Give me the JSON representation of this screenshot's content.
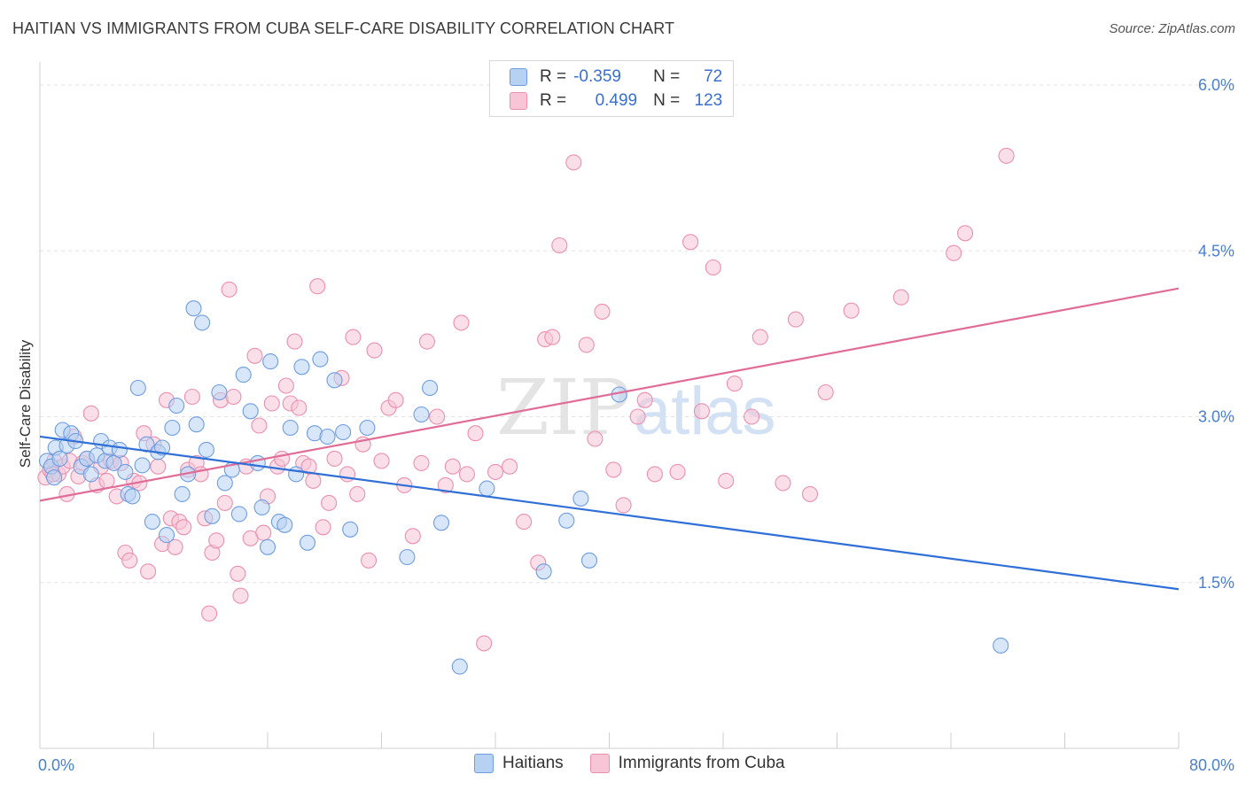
{
  "header": {
    "title": "HAITIAN VS IMMIGRANTS FROM CUBA SELF-CARE DISABILITY CORRELATION CHART",
    "source": "Source: ZipAtlas.com"
  },
  "legend": {
    "rows": [
      {
        "r_label": "R =",
        "r_value": "-0.359",
        "n_label": "N =",
        "n_value": "72"
      },
      {
        "r_label": "R =",
        "r_value": "0.499",
        "n_label": "N =",
        "n_value": "123"
      }
    ],
    "series_names": [
      "Haitians",
      "Immigrants from Cuba"
    ]
  },
  "watermark": {
    "zip": "ZIP",
    "atlas": "atlas"
  },
  "colors": {
    "haitian_fill": "#b7d1f3",
    "haitian_stroke": "#6f9de0",
    "haitian_line": "#2f6fd6",
    "cuba_fill": "#f7c5d5",
    "cuba_stroke": "#ea8fb0",
    "cuba_line": "#e06d97",
    "tick_label": "#4a7fd0",
    "grid": "#e3e3e3"
  },
  "chart_data": {
    "type": "scatter",
    "title": "HAITIAN VS IMMIGRANTS FROM CUBA SELF-CARE DISABILITY CORRELATION CHART",
    "xlabel": "",
    "ylabel": "Self-Care Disability",
    "xlim": [
      0,
      80
    ],
    "ylim": [
      0,
      6.3
    ],
    "x_tick_labels": [
      "0.0%",
      "80.0%"
    ],
    "y_ticks": [
      1.5,
      3.0,
      4.5,
      6.0
    ],
    "y_tick_labels": [
      "1.5%",
      "3.0%",
      "4.5%",
      "6.0%"
    ],
    "grid": true,
    "legend_position": "top-center",
    "series": [
      {
        "name": "Haitians",
        "R": -0.359,
        "N": 72,
        "trend": [
          [
            0,
            2.82
          ],
          [
            80,
            1.44
          ]
        ],
        "points": [
          [
            0.5,
            2.6
          ],
          [
            0.8,
            2.55
          ],
          [
            1.1,
            2.72
          ],
          [
            1.4,
            2.62
          ],
          [
            1.6,
            2.88
          ],
          [
            1.9,
            2.74
          ],
          [
            2.2,
            2.85
          ],
          [
            2.5,
            2.78
          ],
          [
            2.9,
            2.55
          ],
          [
            3.3,
            2.62
          ],
          [
            3.6,
            2.48
          ],
          [
            4.0,
            2.65
          ],
          [
            4.3,
            2.78
          ],
          [
            4.6,
            2.6
          ],
          [
            4.9,
            2.72
          ],
          [
            5.2,
            2.58
          ],
          [
            5.6,
            2.7
          ],
          [
            6.0,
            2.5
          ],
          [
            6.2,
            2.3
          ],
          [
            6.5,
            2.28
          ],
          [
            6.9,
            3.26
          ],
          [
            7.2,
            2.56
          ],
          [
            7.5,
            2.75
          ],
          [
            7.9,
            2.05
          ],
          [
            8.3,
            2.68
          ],
          [
            8.6,
            2.72
          ],
          [
            8.9,
            1.93
          ],
          [
            9.3,
            2.9
          ],
          [
            9.6,
            3.1
          ],
          [
            10.0,
            2.3
          ],
          [
            10.4,
            2.48
          ],
          [
            10.8,
            3.98
          ],
          [
            11.0,
            2.93
          ],
          [
            11.4,
            3.85
          ],
          [
            11.7,
            2.7
          ],
          [
            12.1,
            2.1
          ],
          [
            12.6,
            3.22
          ],
          [
            13.0,
            2.4
          ],
          [
            13.5,
            2.52
          ],
          [
            14.0,
            2.12
          ],
          [
            14.3,
            3.38
          ],
          [
            14.8,
            3.05
          ],
          [
            15.3,
            2.58
          ],
          [
            15.6,
            2.18
          ],
          [
            16.0,
            1.82
          ],
          [
            16.2,
            3.5
          ],
          [
            16.8,
            2.05
          ],
          [
            17.2,
            2.02
          ],
          [
            17.6,
            2.9
          ],
          [
            18.0,
            2.48
          ],
          [
            18.4,
            3.45
          ],
          [
            18.8,
            1.86
          ],
          [
            19.3,
            2.85
          ],
          [
            19.7,
            3.52
          ],
          [
            20.2,
            2.82
          ],
          [
            20.7,
            3.33
          ],
          [
            21.3,
            2.86
          ],
          [
            21.8,
            1.98
          ],
          [
            23.0,
            2.9
          ],
          [
            25.8,
            1.73
          ],
          [
            26.8,
            3.02
          ],
          [
            27.4,
            3.26
          ],
          [
            28.2,
            2.04
          ],
          [
            29.5,
            0.74
          ],
          [
            31.4,
            2.35
          ],
          [
            35.4,
            1.6
          ],
          [
            37.0,
            2.06
          ],
          [
            38.0,
            2.26
          ],
          [
            38.6,
            1.7
          ],
          [
            40.7,
            3.2
          ],
          [
            67.5,
            0.93
          ],
          [
            1.0,
            2.45
          ]
        ]
      },
      {
        "name": "Immigrants from Cuba",
        "R": 0.499,
        "N": 123,
        "trend": [
          [
            0,
            2.24
          ],
          [
            80,
            4.16
          ]
        ],
        "points": [
          [
            0.4,
            2.45
          ],
          [
            0.7,
            2.52
          ],
          [
            1.0,
            2.6
          ],
          [
            1.3,
            2.48
          ],
          [
            1.6,
            2.55
          ],
          [
            1.9,
            2.3
          ],
          [
            2.1,
            2.6
          ],
          [
            2.4,
            2.82
          ],
          [
            2.7,
            2.46
          ],
          [
            3.0,
            2.58
          ],
          [
            3.3,
            2.62
          ],
          [
            3.6,
            3.03
          ],
          [
            4.0,
            2.38
          ],
          [
            4.3,
            2.55
          ],
          [
            4.7,
            2.42
          ],
          [
            5.0,
            2.6
          ],
          [
            5.4,
            2.28
          ],
          [
            5.7,
            2.58
          ],
          [
            6.0,
            1.77
          ],
          [
            6.3,
            1.7
          ],
          [
            6.6,
            2.42
          ],
          [
            7.0,
            2.4
          ],
          [
            7.3,
            2.85
          ],
          [
            7.6,
            1.6
          ],
          [
            8.0,
            2.75
          ],
          [
            8.3,
            2.55
          ],
          [
            8.6,
            1.85
          ],
          [
            8.9,
            3.15
          ],
          [
            9.2,
            2.08
          ],
          [
            9.5,
            1.82
          ],
          [
            9.8,
            2.05
          ],
          [
            10.1,
            2.0
          ],
          [
            10.4,
            2.52
          ],
          [
            10.7,
            3.18
          ],
          [
            11.0,
            2.58
          ],
          [
            11.3,
            2.48
          ],
          [
            11.6,
            2.08
          ],
          [
            11.9,
            1.22
          ],
          [
            12.1,
            1.77
          ],
          [
            12.4,
            1.88
          ],
          [
            12.7,
            3.15
          ],
          [
            13.0,
            2.22
          ],
          [
            13.3,
            4.15
          ],
          [
            13.6,
            3.18
          ],
          [
            13.9,
            1.58
          ],
          [
            14.1,
            1.38
          ],
          [
            14.5,
            2.55
          ],
          [
            14.8,
            1.9
          ],
          [
            15.1,
            3.55
          ],
          [
            15.4,
            2.92
          ],
          [
            15.7,
            1.95
          ],
          [
            16.0,
            2.28
          ],
          [
            16.3,
            3.12
          ],
          [
            16.7,
            2.55
          ],
          [
            17.0,
            2.62
          ],
          [
            17.3,
            3.28
          ],
          [
            17.6,
            3.12
          ],
          [
            17.9,
            3.68
          ],
          [
            18.2,
            3.08
          ],
          [
            18.5,
            2.58
          ],
          [
            18.9,
            2.55
          ],
          [
            19.2,
            2.42
          ],
          [
            19.5,
            4.18
          ],
          [
            19.9,
            2.0
          ],
          [
            20.3,
            2.22
          ],
          [
            20.7,
            2.62
          ],
          [
            21.2,
            3.35
          ],
          [
            21.6,
            2.48
          ],
          [
            22.0,
            3.72
          ],
          [
            22.3,
            2.3
          ],
          [
            22.7,
            2.75
          ],
          [
            23.1,
            1.7
          ],
          [
            23.5,
            3.6
          ],
          [
            24.0,
            2.6
          ],
          [
            24.5,
            3.08
          ],
          [
            25.0,
            3.15
          ],
          [
            25.6,
            2.38
          ],
          [
            26.2,
            1.92
          ],
          [
            26.8,
            2.58
          ],
          [
            27.2,
            3.68
          ],
          [
            27.9,
            3.0
          ],
          [
            28.5,
            2.38
          ],
          [
            29.0,
            2.55
          ],
          [
            29.6,
            3.85
          ],
          [
            30.0,
            2.48
          ],
          [
            30.6,
            2.85
          ],
          [
            31.2,
            0.95
          ],
          [
            32.0,
            2.5
          ],
          [
            33.0,
            2.55
          ],
          [
            34.0,
            2.05
          ],
          [
            35.0,
            1.68
          ],
          [
            35.5,
            3.7
          ],
          [
            36.0,
            3.72
          ],
          [
            36.5,
            4.55
          ],
          [
            37.5,
            5.3
          ],
          [
            38.4,
            3.65
          ],
          [
            39.0,
            2.8
          ],
          [
            39.5,
            3.95
          ],
          [
            40.3,
            2.52
          ],
          [
            41.0,
            2.2
          ],
          [
            42.0,
            3.0
          ],
          [
            42.5,
            3.15
          ],
          [
            43.2,
            2.48
          ],
          [
            44.8,
            2.5
          ],
          [
            45.7,
            4.58
          ],
          [
            46.5,
            3.05
          ],
          [
            47.3,
            4.35
          ],
          [
            48.2,
            2.42
          ],
          [
            48.8,
            3.3
          ],
          [
            50.0,
            3.0
          ],
          [
            50.6,
            3.72
          ],
          [
            52.2,
            2.4
          ],
          [
            53.1,
            3.88
          ],
          [
            54.1,
            2.3
          ],
          [
            55.2,
            3.22
          ],
          [
            57.0,
            3.96
          ],
          [
            60.5,
            4.08
          ],
          [
            64.2,
            4.48
          ],
          [
            65.0,
            4.66
          ],
          [
            67.9,
            5.36
          ],
          [
            0.9,
            2.48
          ]
        ]
      }
    ]
  }
}
